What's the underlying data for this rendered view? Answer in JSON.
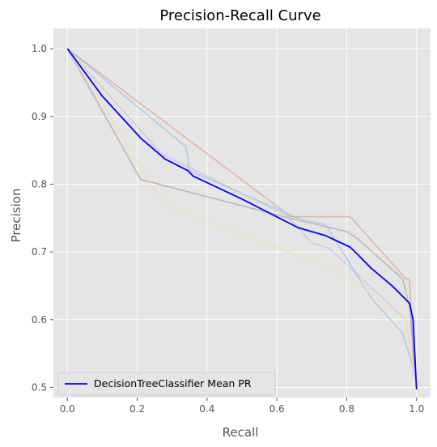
{
  "chart_data": {
    "type": "line",
    "title": "Precision-Recall Curve",
    "xlabel": "Recall",
    "ylabel": "Precision",
    "xlim": [
      -0.04,
      1.04
    ],
    "ylim": [
      0.485,
      1.03
    ],
    "xticks": [
      0.0,
      0.2,
      0.4,
      0.6,
      0.8,
      1.0
    ],
    "yticks": [
      0.5,
      0.6,
      0.7,
      0.8,
      0.9,
      1.0
    ],
    "xtick_labels": [
      "0.0",
      "0.2",
      "0.4",
      "0.6",
      "0.8",
      "1.0"
    ],
    "ytick_labels": [
      "0.5",
      "0.6",
      "0.7",
      "0.8",
      "0.9",
      "1.0"
    ],
    "grid": true,
    "background": "#e5e5e5",
    "legend_position": "bottom-left",
    "series": [
      {
        "name": "DecisionTreeClassifier Mean PR",
        "color": "#0000ff",
        "opacity": 1.0,
        "x": [
          0.0,
          0.1,
          0.21,
          0.28,
          0.345,
          0.36,
          0.5,
          0.66,
          0.74,
          0.81,
          0.83,
          0.87,
          0.93,
          0.965,
          0.98,
          0.99,
          1.0
        ],
        "y": [
          1.0,
          0.93,
          0.868,
          0.837,
          0.82,
          0.812,
          0.778,
          0.736,
          0.724,
          0.707,
          0.697,
          0.676,
          0.65,
          0.632,
          0.624,
          0.6,
          0.497
        ]
      },
      {
        "name": "",
        "color": "#e8a090",
        "opacity": 0.75,
        "x": [
          0.0,
          0.64,
          0.81,
          0.97,
          0.98,
          0.99,
          1.0
        ],
        "y": [
          1.0,
          0.752,
          0.752,
          0.66,
          0.66,
          0.55,
          0.5
        ]
      },
      {
        "name": "",
        "color": "#9dc3df",
        "opacity": 0.75,
        "x": [
          0.0,
          0.34,
          0.35,
          0.66,
          0.74,
          0.87,
          0.96,
          0.99,
          1.0
        ],
        "y": [
          1.0,
          0.855,
          0.82,
          0.75,
          0.74,
          0.632,
          0.58,
          0.53,
          0.5
        ]
      },
      {
        "name": "",
        "color": "#aaaaaa",
        "opacity": 0.75,
        "x": [
          0.0,
          0.21,
          0.62,
          0.8,
          0.83,
          0.96,
          0.98,
          1.0
        ],
        "y": [
          1.0,
          0.807,
          0.752,
          0.73,
          0.72,
          0.66,
          0.62,
          0.5
        ]
      },
      {
        "name": "",
        "color": "#c8c0e0",
        "opacity": 0.75,
        "x": [
          0.0,
          0.27,
          0.63,
          0.7,
          0.75,
          0.97,
          1.0
        ],
        "y": [
          1.0,
          0.845,
          0.753,
          0.713,
          0.705,
          0.6,
          0.5
        ]
      },
      {
        "name": "",
        "color": "#f8dcb0",
        "opacity": 0.8,
        "x": [
          0.0,
          0.28,
          0.78,
          0.97,
          1.0
        ],
        "y": [
          1.0,
          0.768,
          0.672,
          0.6,
          0.5
        ]
      }
    ]
  }
}
